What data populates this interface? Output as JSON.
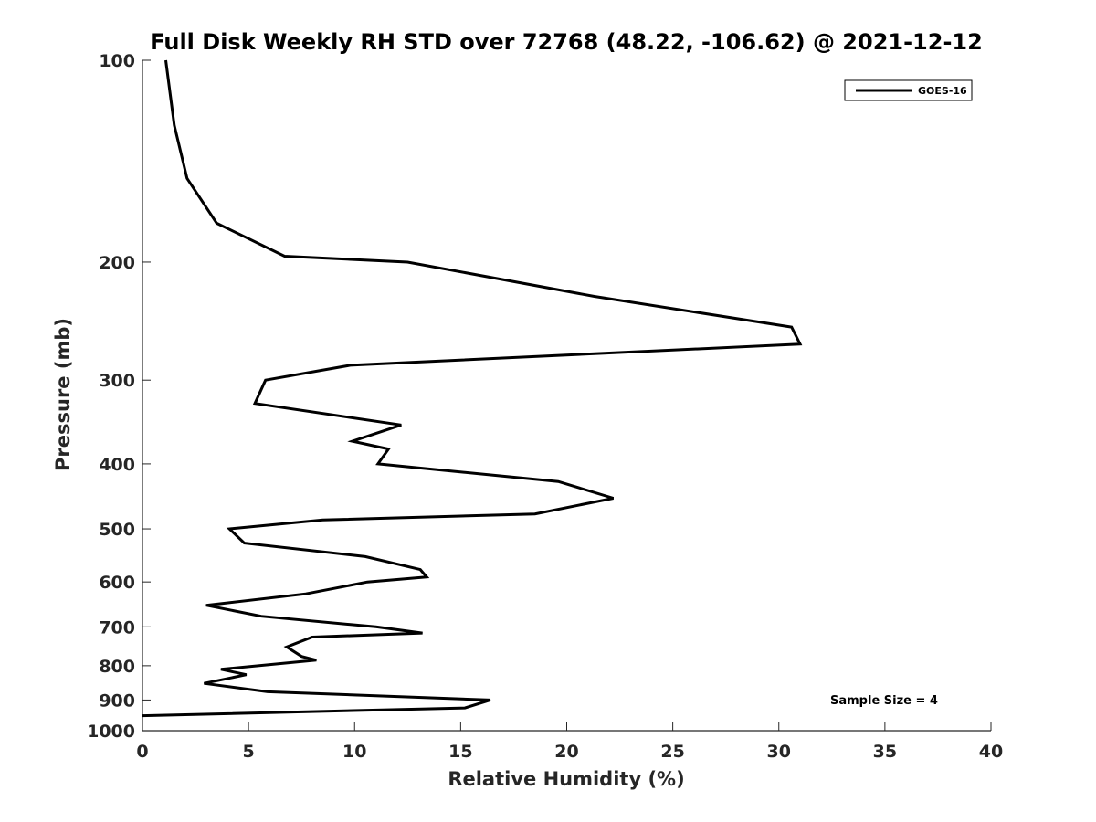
{
  "chart_data": {
    "type": "line",
    "title": "Full Disk Weekly RH STD over 72768 (48.22, -106.62) @ 2021-12-12",
    "xlabel": "Relative Humidity (%)",
    "ylabel": "Pressure (mb)",
    "xlim": [
      0,
      40
    ],
    "ylim": [
      1000,
      100
    ],
    "yscale": "log",
    "ydirection": "reversed",
    "x_ticks": [
      0,
      5,
      10,
      15,
      20,
      25,
      30,
      35,
      40
    ],
    "y_ticks": [
      100,
      200,
      300,
      400,
      500,
      600,
      700,
      800,
      900,
      1000
    ],
    "grid": false,
    "legend_position": "top-right",
    "annotation": "Sample Size = 4",
    "series": [
      {
        "name": "GOES-16",
        "color": "#000000",
        "x": [
          1.1,
          1.5,
          2.1,
          3.5,
          6.7,
          12.5,
          21.3,
          30.6,
          31.0,
          9.8,
          5.8,
          5.3,
          12.2,
          9.9,
          11.6,
          11.1,
          19.6,
          22.2,
          18.5,
          8.5,
          4.1,
          4.8,
          10.5,
          13.1,
          13.4,
          10.6,
          7.7,
          3.0,
          5.6,
          11.0,
          13.2,
          8.0,
          6.8,
          7.5,
          8.2,
          3.7,
          4.9,
          2.9,
          5.9,
          16.4,
          15.2,
          0.0
        ],
        "y": [
          100,
          125,
          150,
          175,
          196,
          200,
          225,
          250,
          265,
          285,
          300,
          325,
          350,
          370,
          380,
          400,
          425,
          450,
          475,
          485,
          500,
          525,
          550,
          575,
          590,
          600,
          625,
          650,
          675,
          700,
          715,
          725,
          750,
          775,
          785,
          810,
          825,
          850,
          875,
          900,
          925,
          950
        ]
      }
    ]
  }
}
